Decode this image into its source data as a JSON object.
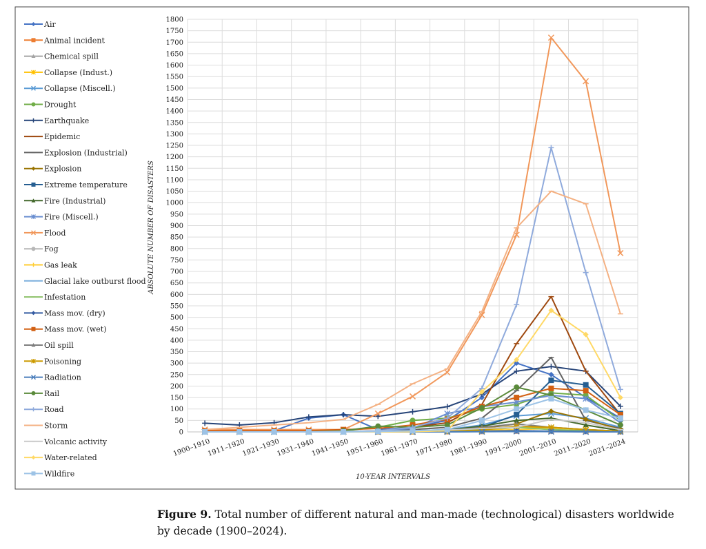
{
  "chart_data": {
    "type": "line",
    "title": "",
    "xlabel": "10-YEAR INTERVALS",
    "ylabel": "ABSOLUTE NUMBER OF DISASTERS",
    "ylim": [
      0,
      1800
    ],
    "ytick_step": 50,
    "grid": true,
    "legend_placement": "left",
    "categories": [
      "1900–1910",
      "1911–1920",
      "1921–1930",
      "1931–1940",
      "1941–1950",
      "1951–1960",
      "1961–1970",
      "1971–1980",
      "1981–1990",
      "1991–2000",
      "2001–2010",
      "2011–2020",
      "2021–2024"
    ],
    "series": [
      {
        "name": "Air",
        "color": "#4472C4",
        "marker": "diamond",
        "values": [
          0,
          5,
          5,
          60,
          75,
          10,
          20,
          50,
          150,
          300,
          250,
          150,
          60
        ]
      },
      {
        "name": "Animal incident",
        "color": "#ED7D31",
        "marker": "square",
        "values": [
          0,
          0,
          0,
          0,
          0,
          0,
          0,
          1,
          2,
          3,
          3,
          2,
          1
        ]
      },
      {
        "name": "Chemical spill",
        "color": "#A5A5A5",
        "marker": "triangle",
        "values": [
          0,
          0,
          0,
          0,
          0,
          0,
          1,
          3,
          10,
          25,
          20,
          10,
          3
        ]
      },
      {
        "name": "Collapse (Indust.)",
        "color": "#FFC000",
        "marker": "xbar",
        "values": [
          0,
          0,
          0,
          0,
          0,
          0,
          0,
          1,
          5,
          20,
          15,
          8,
          3
        ]
      },
      {
        "name": "Collapse (Miscell.)",
        "color": "#5B9BD5",
        "marker": "star",
        "values": [
          0,
          0,
          0,
          0,
          1,
          2,
          5,
          10,
          30,
          70,
          80,
          60,
          20
        ]
      },
      {
        "name": "Drought",
        "color": "#70AD47",
        "marker": "circle",
        "values": [
          0,
          0,
          0,
          0,
          5,
          20,
          50,
          60,
          100,
          120,
          170,
          160,
          50
        ]
      },
      {
        "name": "Earthquake",
        "color": "#264478",
        "marker": "plus",
        "values": [
          38,
          30,
          40,
          65,
          75,
          68,
          88,
          110,
          165,
          265,
          285,
          265,
          112
        ]
      },
      {
        "name": "Epidemic",
        "color": "#9E480E",
        "marker": "dash",
        "values": [
          0,
          0,
          0,
          0,
          0,
          5,
          20,
          40,
          120,
          385,
          590,
          265,
          75
        ]
      },
      {
        "name": "Explosion (Industrial)",
        "color": "#636363",
        "marker": "dash",
        "values": [
          0,
          0,
          0,
          0,
          0,
          2,
          10,
          20,
          60,
          180,
          325,
          50,
          15
        ]
      },
      {
        "name": "Explosion",
        "color": "#997300",
        "marker": "diamond",
        "values": [
          0,
          0,
          0,
          0,
          0,
          1,
          3,
          5,
          15,
          35,
          90,
          55,
          10
        ]
      },
      {
        "name": "Extreme temperature",
        "color": "#255E91",
        "marker": "square",
        "values": [
          0,
          0,
          0,
          0,
          0,
          1,
          3,
          5,
          20,
          75,
          225,
          205,
          80
        ]
      },
      {
        "name": "Fire (Industrial)",
        "color": "#43682B",
        "marker": "triangle",
        "values": [
          0,
          0,
          0,
          0,
          0,
          1,
          3,
          8,
          25,
          50,
          60,
          30,
          5
        ]
      },
      {
        "name": "Fire (Miscell.)",
        "color": "#698ED0",
        "marker": "xbar",
        "values": [
          0,
          0,
          0,
          0,
          2,
          5,
          15,
          80,
          110,
          130,
          160,
          145,
          40
        ]
      },
      {
        "name": "Flood",
        "color": "#F1975A",
        "marker": "star",
        "values": [
          10,
          10,
          10,
          10,
          10,
          80,
          155,
          260,
          510,
          860,
          1720,
          1530,
          780
        ]
      },
      {
        "name": "Fog",
        "color": "#B7B7B7",
        "marker": "circle",
        "values": [
          0,
          0,
          0,
          0,
          0,
          0,
          0,
          1,
          2,
          3,
          2,
          1,
          0
        ]
      },
      {
        "name": "Gas leak",
        "color": "#FFCD33",
        "marker": "plus",
        "values": [
          0,
          0,
          0,
          0,
          0,
          0,
          1,
          2,
          5,
          10,
          15,
          10,
          2
        ]
      },
      {
        "name": "Glacial lake outburst flood",
        "color": "#7CAFDD",
        "marker": "dash",
        "values": [
          0,
          0,
          0,
          0,
          0,
          0,
          0,
          0,
          1,
          1,
          2,
          1,
          0
        ]
      },
      {
        "name": "Infestation",
        "color": "#8CC168",
        "marker": "dash",
        "values": [
          0,
          0,
          0,
          0,
          0,
          1,
          2,
          5,
          10,
          20,
          10,
          5,
          2
        ]
      },
      {
        "name": "Mass mov. (dry)",
        "color": "#335AA1",
        "marker": "diamond",
        "values": [
          0,
          0,
          0,
          0,
          0,
          0,
          1,
          2,
          3,
          5,
          3,
          2,
          0
        ]
      },
      {
        "name": "Mass mov. (wet)",
        "color": "#D26012",
        "marker": "square",
        "values": [
          5,
          5,
          5,
          5,
          10,
          15,
          30,
          55,
          110,
          150,
          190,
          180,
          75
        ]
      },
      {
        "name": "Oil spill",
        "color": "#7E7E7E",
        "marker": "triangle",
        "values": [
          0,
          0,
          0,
          0,
          0,
          0,
          2,
          5,
          20,
          35,
          20,
          10,
          3
        ]
      },
      {
        "name": "Poisoning",
        "color": "#CC9A00",
        "marker": "xbar",
        "values": [
          0,
          0,
          0,
          0,
          0,
          0,
          1,
          3,
          8,
          25,
          20,
          10,
          2
        ]
      },
      {
        "name": "Radiation",
        "color": "#4A7EBB",
        "marker": "star",
        "values": [
          0,
          0,
          0,
          0,
          0,
          0,
          0,
          0,
          1,
          2,
          1,
          0,
          0
        ]
      },
      {
        "name": "Rail",
        "color": "#5A8A3A",
        "marker": "circle",
        "values": [
          0,
          0,
          0,
          0,
          5,
          25,
          20,
          30,
          105,
          195,
          160,
          95,
          30
        ]
      },
      {
        "name": "Road",
        "color": "#8FAADC",
        "marker": "plus",
        "values": [
          0,
          0,
          0,
          0,
          0,
          5,
          20,
          60,
          190,
          555,
          1240,
          695,
          185
        ]
      },
      {
        "name": "Storm",
        "color": "#F4B183",
        "marker": "dash",
        "values": [
          10,
          20,
          30,
          40,
          55,
          120,
          210,
          275,
          525,
          890,
          1050,
          995,
          515
        ]
      },
      {
        "name": "Volcanic activity",
        "color": "#C9C9C9",
        "marker": "dash",
        "values": [
          0,
          0,
          0,
          0,
          2,
          3,
          5,
          8,
          15,
          20,
          55,
          40,
          10
        ]
      },
      {
        "name": "Water-related",
        "color": "#FFD966",
        "marker": "diamond",
        "values": [
          0,
          0,
          0,
          0,
          0,
          0,
          1,
          5,
          175,
          315,
          530,
          425,
          150
        ]
      },
      {
        "name": "Wildfire",
        "color": "#9DC3E6",
        "marker": "square",
        "values": [
          0,
          0,
          0,
          0,
          0,
          2,
          5,
          10,
          50,
          100,
          145,
          95,
          60
        ]
      }
    ]
  },
  "caption": {
    "label": "Figure 9.",
    "text": " Total number of different natural and man-made (technological) disasters worldwide by decade (1900–2024)."
  }
}
